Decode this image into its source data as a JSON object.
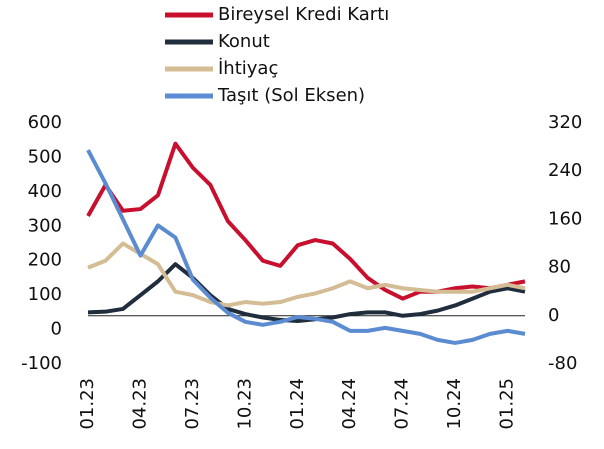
{
  "chart_data": {
    "type": "line",
    "categories": [
      "01.23",
      null,
      null,
      "04.23",
      null,
      null,
      "07.23",
      null,
      null,
      "10.23",
      null,
      null,
      "01.24",
      null,
      null,
      "04.24",
      null,
      null,
      "07.24",
      null,
      null,
      "10.24",
      null,
      null,
      "01.25",
      null
    ],
    "series": [
      {
        "name": "Bireysel Kredi Kartı",
        "color": "#c8102e",
        "values": [
          330,
          420,
          345,
          350,
          390,
          540,
          470,
          420,
          315,
          260,
          200,
          185,
          245,
          260,
          250,
          205,
          150,
          115,
          90,
          110,
          110,
          120,
          125,
          120,
          130,
          140
        ]
      },
      {
        "name": "Konut",
        "color": "#1f2d3d",
        "values": [
          50,
          52,
          60,
          100,
          140,
          190,
          150,
          100,
          60,
          45,
          35,
          28,
          25,
          30,
          35,
          45,
          50,
          50,
          40,
          45,
          55,
          70,
          90,
          110,
          120,
          110
        ]
      },
      {
        "name": "İhtiyaç",
        "color": "#d4bc94",
        "values": [
          180,
          200,
          250,
          220,
          190,
          110,
          100,
          80,
          70,
          80,
          75,
          80,
          95,
          105,
          120,
          140,
          120,
          130,
          120,
          115,
          110,
          110,
          110,
          120,
          130,
          120
        ]
      },
      {
        "name": "Taşıt (Sol Eksen)",
        "color": "#5b8bd0",
        "axis": "y2",
        "values": [
          275,
          220,
          160,
          100,
          150,
          130,
          60,
          30,
          5,
          -10,
          -15,
          -10,
          -2,
          -5,
          -10,
          -25,
          -25,
          -20,
          -25,
          -30,
          -40,
          -45,
          -40,
          -30,
          -25,
          -30
        ]
      }
    ],
    "ylim": [
      -100,
      600
    ],
    "yticks": [
      -100,
      0,
      100,
      200,
      300,
      400,
      500,
      600
    ],
    "y2lim": [
      -80,
      320
    ],
    "y2ticks": [
      -80,
      0,
      80,
      160,
      240,
      320
    ],
    "legend": "top"
  }
}
